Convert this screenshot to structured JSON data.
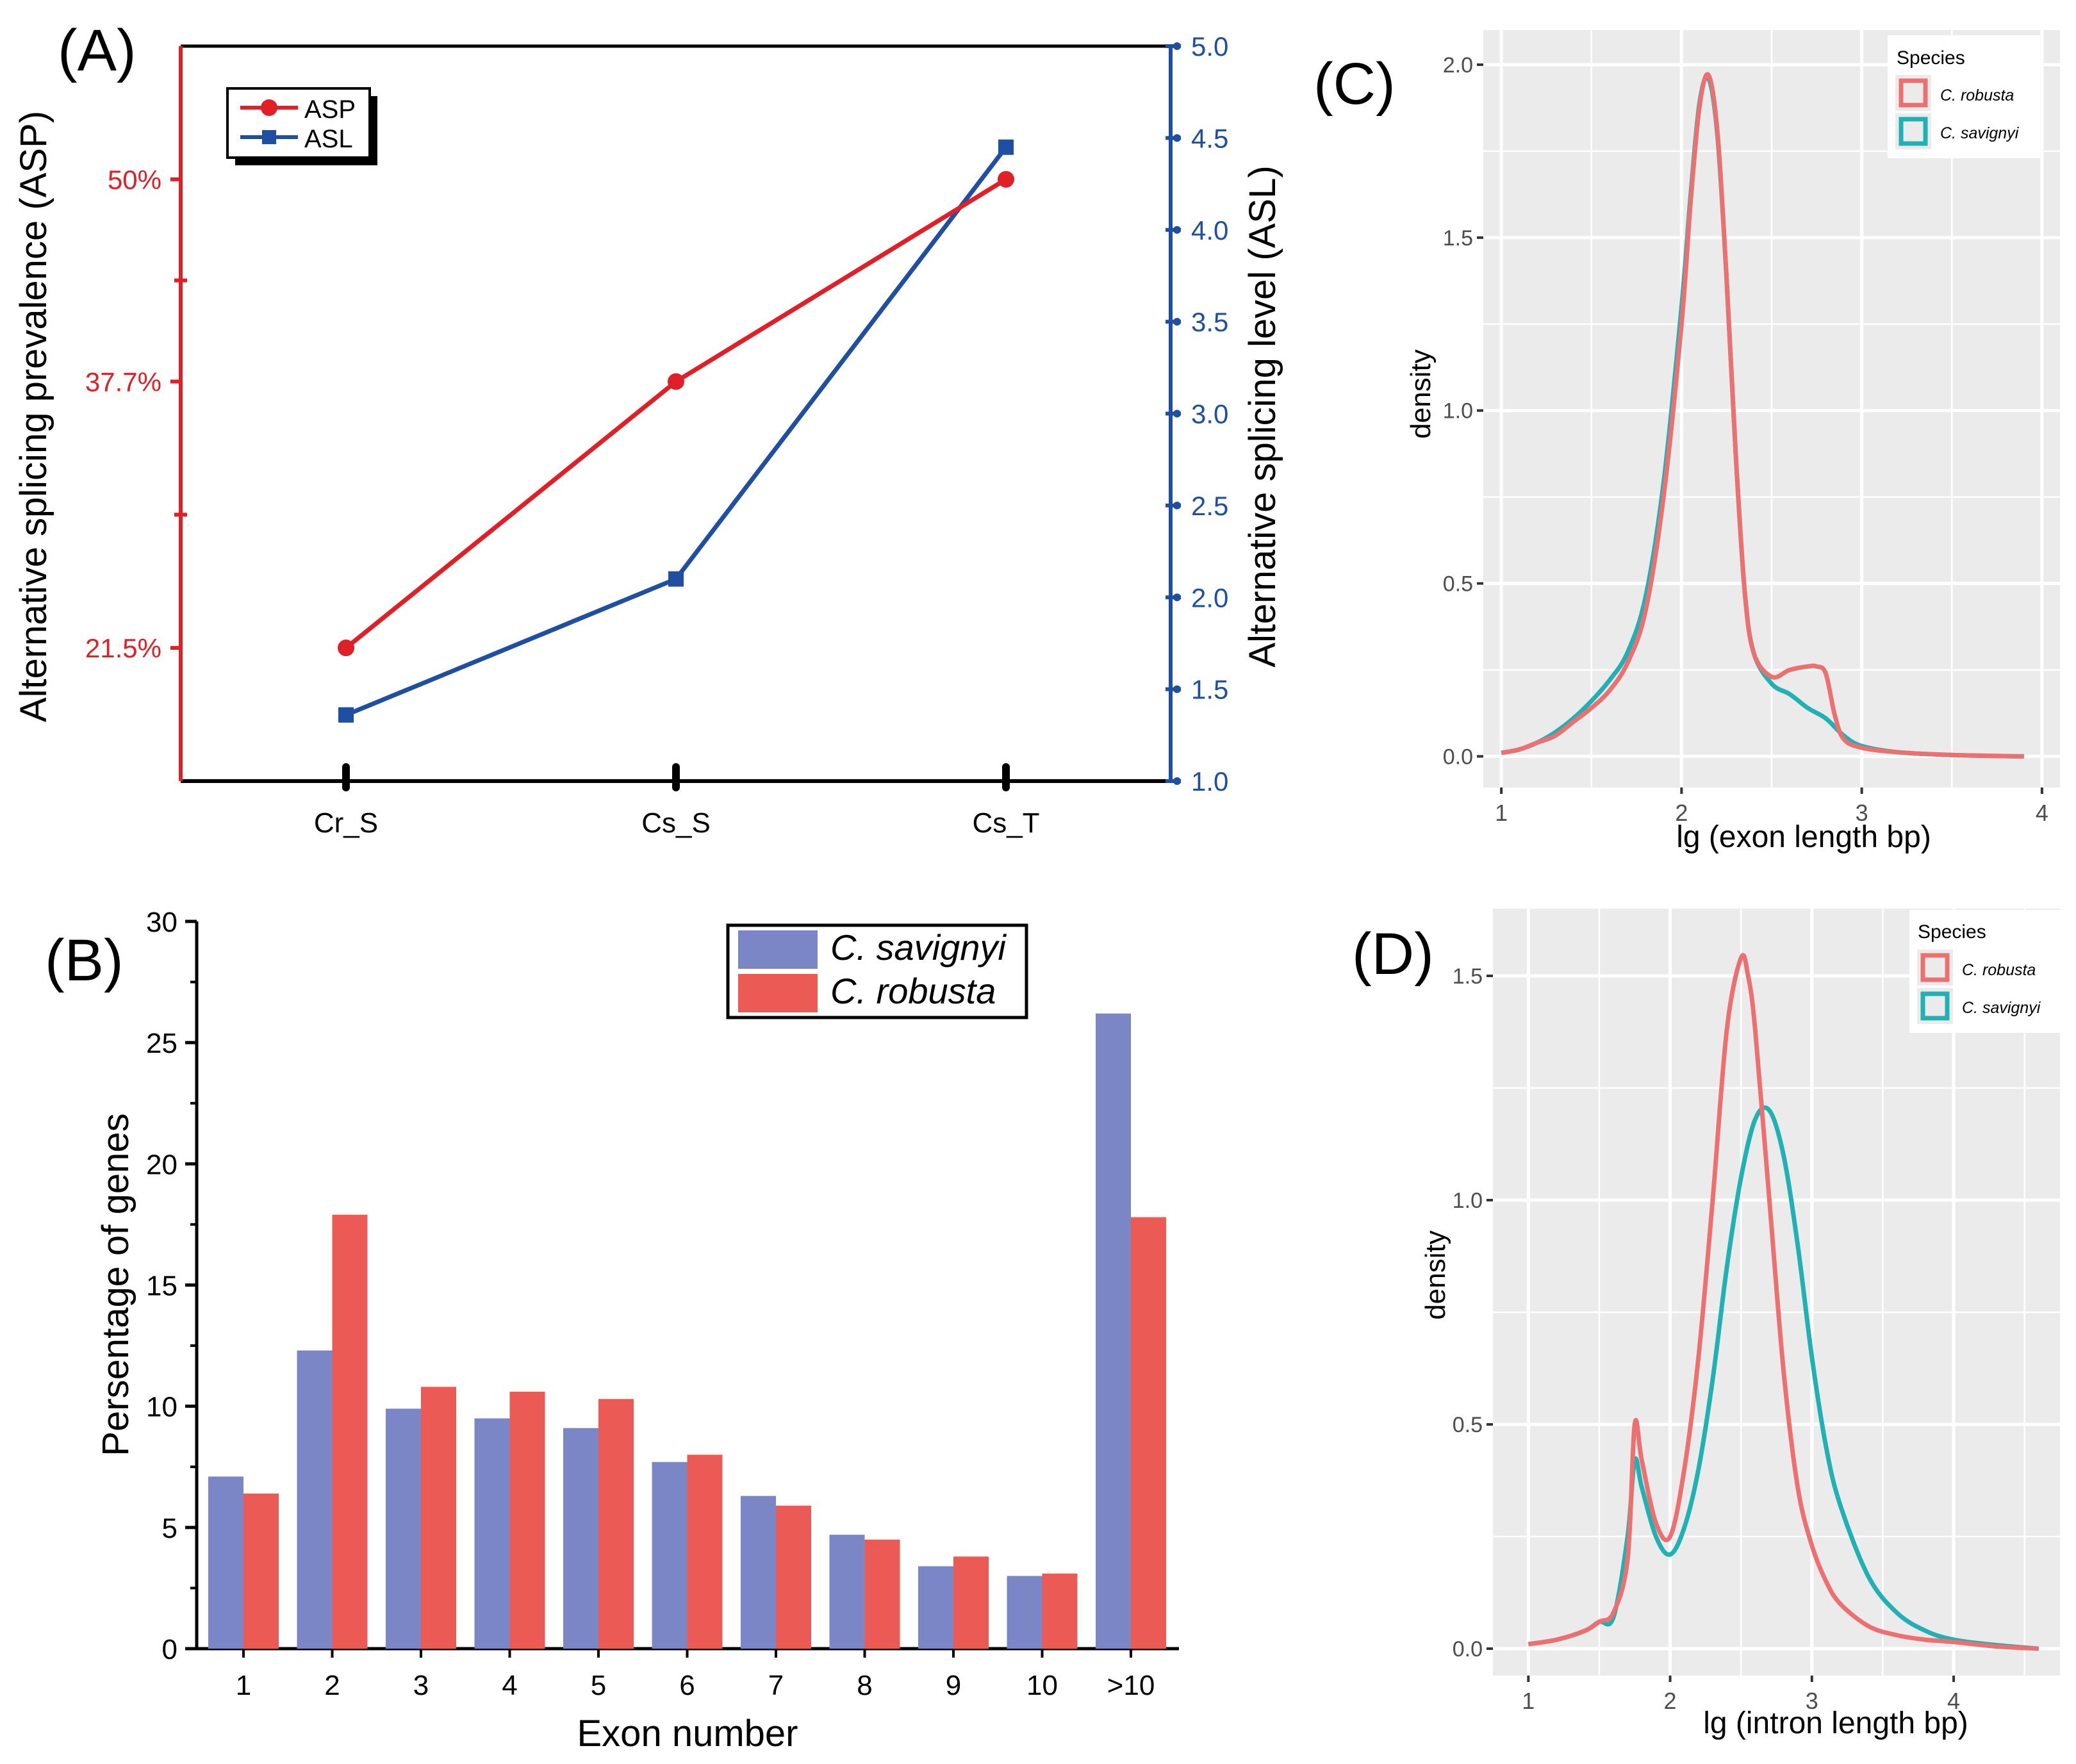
{
  "colors": {
    "asp": "#e01f26",
    "asl": "#1f4fa0",
    "savignyi_bar": "#7b86c6",
    "robusta_bar": "#ec5a55",
    "robusta_line": "#ec7070",
    "savignyi_line": "#1fb1b3",
    "ggplot_bg": "#ebebeb"
  },
  "chart_data": [
    {
      "panel": "(A)",
      "type": "line",
      "categories": [
        "Cr_S",
        "Cs_S",
        "Cs_T"
      ],
      "series": [
        {
          "name": "ASP",
          "axis": "left",
          "values": [
            21.5,
            37.7,
            50
          ]
        },
        {
          "name": "ASL",
          "axis": "right",
          "values": [
            1.36,
            2.1,
            4.45
          ]
        }
      ],
      "ylabel_left": "Alternative splicing prevalence (ASP)",
      "ylabel_right": "Alternative splicing level (ASL)",
      "ylim_left": [
        13.4,
        58.1
      ],
      "ylim_right": [
        1.0,
        5.0
      ],
      "left_ticks": [
        "21.5%",
        "37.7%",
        "50%"
      ],
      "left_tick_values": [
        21.5,
        37.7,
        50
      ],
      "right_ticks": [
        "1.0",
        "1.5",
        "2.0",
        "2.5",
        "3.0",
        "3.5",
        "4.0",
        "4.5",
        "5.0"
      ],
      "legend": [
        "ASP",
        "ASL"
      ],
      "legend_position": "top-left"
    },
    {
      "panel": "(B)",
      "type": "bar",
      "categories": [
        "1",
        "2",
        "3",
        "4",
        "5",
        "6",
        "7",
        "8",
        "9",
        "10",
        ">10"
      ],
      "series": [
        {
          "name": "C. savignyi",
          "values": [
            7.1,
            12.3,
            9.9,
            9.5,
            9.1,
            7.7,
            6.3,
            4.7,
            3.4,
            3.0,
            26.2
          ]
        },
        {
          "name": "C. robusta",
          "values": [
            6.4,
            17.9,
            10.8,
            10.6,
            10.3,
            8.0,
            5.9,
            4.5,
            3.8,
            3.1,
            17.8
          ]
        }
      ],
      "xlabel": "Exon number",
      "ylabel": "Persentage of genes",
      "ylim": [
        0,
        30
      ],
      "yticks": [
        "0",
        "5",
        "10",
        "15",
        "20",
        "25",
        "30"
      ],
      "legend_position": "top-right"
    },
    {
      "panel": "(C)",
      "type": "line",
      "xlabel": "lg (exon length bp)",
      "ylabel": "density",
      "xlim": [
        0.9,
        4.1
      ],
      "ylim": [
        -0.09,
        2.1
      ],
      "xticks": [
        "1",
        "2",
        "3",
        "4"
      ],
      "yticks": [
        "0.0",
        "0.5",
        "1.0",
        "1.5",
        "2.0"
      ],
      "legend_title": "Species",
      "legend": [
        "C. robusta",
        "C. savignyi"
      ],
      "legend_position": "top-right",
      "series": [
        {
          "name": "C. robusta",
          "x": [
            1.0,
            1.1,
            1.2,
            1.3,
            1.4,
            1.5,
            1.6,
            1.7,
            1.8,
            1.9,
            2.0,
            2.05,
            2.1,
            2.15,
            2.2,
            2.25,
            2.3,
            2.35,
            2.4,
            2.5,
            2.6,
            2.7,
            2.75,
            2.8,
            2.85,
            2.9,
            3.0,
            3.2,
            3.5,
            3.9
          ],
          "y": [
            0.01,
            0.02,
            0.04,
            0.06,
            0.1,
            0.14,
            0.19,
            0.27,
            0.42,
            0.75,
            1.25,
            1.6,
            1.88,
            1.97,
            1.8,
            1.38,
            0.88,
            0.48,
            0.3,
            0.23,
            0.25,
            0.26,
            0.26,
            0.24,
            0.12,
            0.05,
            0.025,
            0.012,
            0.004,
            0.0
          ]
        },
        {
          "name": "C. savignyi",
          "x": [
            1.0,
            1.1,
            1.2,
            1.3,
            1.4,
            1.5,
            1.6,
            1.7,
            1.8,
            1.9,
            2.0,
            2.05,
            2.1,
            2.15,
            2.2,
            2.25,
            2.3,
            2.35,
            2.4,
            2.5,
            2.6,
            2.7,
            2.8,
            2.9,
            3.0,
            3.2,
            3.5,
            3.9
          ],
          "y": [
            0.01,
            0.02,
            0.04,
            0.07,
            0.11,
            0.16,
            0.22,
            0.3,
            0.46,
            0.79,
            1.3,
            1.62,
            1.89,
            1.96,
            1.79,
            1.38,
            0.88,
            0.48,
            0.3,
            0.21,
            0.18,
            0.14,
            0.11,
            0.06,
            0.03,
            0.012,
            0.004,
            0.0
          ]
        }
      ]
    },
    {
      "panel": "(D)",
      "type": "line",
      "xlabel": "lg (intron length bp)",
      "ylabel": "density",
      "xlim": [
        0.75,
        4.75
      ],
      "ylim": [
        -0.06,
        1.65
      ],
      "xticks": [
        "1",
        "2",
        "3",
        "4"
      ],
      "yticks": [
        "0.0",
        "0.5",
        "1.0",
        "1.5"
      ],
      "legend_title": "Species",
      "legend": [
        "C. robusta",
        "C. savignyi"
      ],
      "legend_position": "top-right",
      "series": [
        {
          "name": "C. robusta",
          "x": [
            1.0,
            1.2,
            1.4,
            1.5,
            1.6,
            1.7,
            1.75,
            1.8,
            1.9,
            2.0,
            2.1,
            2.2,
            2.3,
            2.4,
            2.5,
            2.55,
            2.6,
            2.7,
            2.8,
            2.9,
            3.0,
            3.1,
            3.2,
            3.4,
            3.6,
            3.8,
            4.0,
            4.3,
            4.6
          ],
          "y": [
            0.01,
            0.02,
            0.04,
            0.06,
            0.08,
            0.2,
            0.5,
            0.42,
            0.28,
            0.25,
            0.4,
            0.65,
            1.0,
            1.38,
            1.54,
            1.5,
            1.38,
            1.0,
            0.62,
            0.36,
            0.23,
            0.15,
            0.1,
            0.05,
            0.03,
            0.02,
            0.015,
            0.005,
            0.0
          ]
        },
        {
          "name": "C. savignyi",
          "x": [
            1.0,
            1.2,
            1.4,
            1.5,
            1.6,
            1.7,
            1.75,
            1.8,
            1.9,
            2.0,
            2.1,
            2.2,
            2.3,
            2.4,
            2.5,
            2.6,
            2.7,
            2.8,
            2.9,
            3.0,
            3.1,
            3.2,
            3.4,
            3.6,
            3.8,
            4.0,
            4.3,
            4.6
          ],
          "y": [
            0.01,
            0.02,
            0.04,
            0.06,
            0.07,
            0.25,
            0.42,
            0.36,
            0.25,
            0.21,
            0.27,
            0.4,
            0.6,
            0.85,
            1.05,
            1.18,
            1.2,
            1.1,
            0.9,
            0.65,
            0.45,
            0.32,
            0.16,
            0.08,
            0.04,
            0.02,
            0.008,
            0.0
          ]
        }
      ]
    }
  ]
}
